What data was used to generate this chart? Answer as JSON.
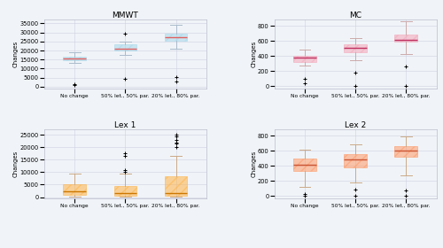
{
  "titles": [
    "MMWT",
    "MC",
    "Lex 1",
    "Lex 2"
  ],
  "xlabel_labels": [
    "No change",
    "50% let., 50% par.",
    "20% let., 80% par."
  ],
  "ylabel": "Changes",
  "color_map": {
    "MMWT": {
      "box": "#a8d8ea",
      "median": "#e06060",
      "whisker": "#aabbcc",
      "flier": "#aaaaaa"
    },
    "MC": {
      "box": "#f4a7b9",
      "median": "#c03060",
      "whisker": "#ccaaaa",
      "flier": "#aaaaaa"
    },
    "Lex 1": {
      "box": "#ffb347",
      "median": "#cc7700",
      "whisker": "#ccaa88",
      "flier": "#aaaaaa"
    },
    "Lex 2": {
      "box": "#ff9966",
      "median": "#cc5533",
      "whisker": "#ccaa88",
      "flier": "#aaaaaa"
    }
  },
  "plots": {
    "MMWT": {
      "no_change": {
        "q1": 14500,
        "median": 15500,
        "q3": 16500,
        "whislo": 13000,
        "whishi": 19000,
        "fliers": [
          1200,
          700
        ]
      },
      "fifty_fifty": {
        "q1": 20000,
        "median": 21200,
        "q3": 23500,
        "whislo": 17500,
        "whishi": 25000,
        "fliers": [
          29500,
          4500
        ]
      },
      "twenty_eighty": {
        "q1": 25500,
        "median": 27500,
        "q3": 29500,
        "whislo": 21000,
        "whishi": 34500,
        "fliers": [
          3000,
          5500
        ]
      }
    },
    "MC": {
      "no_change": {
        "q1": 320,
        "median": 380,
        "q3": 405,
        "whislo": 275,
        "whishi": 480,
        "fliers": [
          40,
          100
        ]
      },
      "fifty_fifty": {
        "q1": 450,
        "median": 510,
        "q3": 560,
        "whislo": 340,
        "whishi": 640,
        "fliers": [
          185,
          10
        ]
      },
      "twenty_eighty": {
        "q1": 590,
        "median": 615,
        "q3": 680,
        "whislo": 430,
        "whishi": 860,
        "fliers": [
          10,
          260
        ]
      }
    },
    "Lex 1": {
      "no_change": {
        "q1": 1000,
        "median": 2500,
        "q3": 5200,
        "whislo": 50,
        "whishi": 9500,
        "fliers": []
      },
      "fifty_fifty": {
        "q1": 400,
        "median": 1800,
        "q3": 4500,
        "whislo": 50,
        "whishi": 9500,
        "fliers": [
          17500,
          16500,
          10800,
          10200
        ]
      },
      "twenty_eighty": {
        "q1": 700,
        "median": 1800,
        "q3": 8200,
        "whislo": 50,
        "whishi": 16500,
        "fliers": [
          20000,
          21500,
          22000,
          23000,
          24500,
          25000
        ]
      }
    },
    "Lex 2": {
      "no_change": {
        "q1": 330,
        "median": 420,
        "q3": 500,
        "whislo": 120,
        "whishi": 620,
        "fliers": [
          30,
          10
        ]
      },
      "fifty_fifty": {
        "q1": 380,
        "median": 490,
        "q3": 560,
        "whislo": 180,
        "whishi": 690,
        "fliers": [
          10,
          90
        ]
      },
      "twenty_eighty": {
        "q1": 520,
        "median": 600,
        "q3": 660,
        "whislo": 280,
        "whishi": 790,
        "fliers": [
          10,
          80
        ]
      }
    }
  },
  "ylims": {
    "MMWT": [
      -1000,
      37000
    ],
    "MC": [
      -30,
      880
    ],
    "Lex 1": [
      -500,
      27000
    ],
    "Lex 2": [
      -30,
      880
    ]
  },
  "yticks": {
    "MMWT": [
      0,
      5000,
      10000,
      15000,
      20000,
      25000,
      30000,
      35000
    ],
    "MC": [
      0,
      200,
      400,
      600,
      800
    ],
    "Lex 1": [
      0,
      5000,
      10000,
      15000,
      20000,
      25000
    ],
    "Lex 2": [
      0,
      200,
      400,
      600,
      800
    ]
  },
  "bg_color": "#f0f4f8"
}
